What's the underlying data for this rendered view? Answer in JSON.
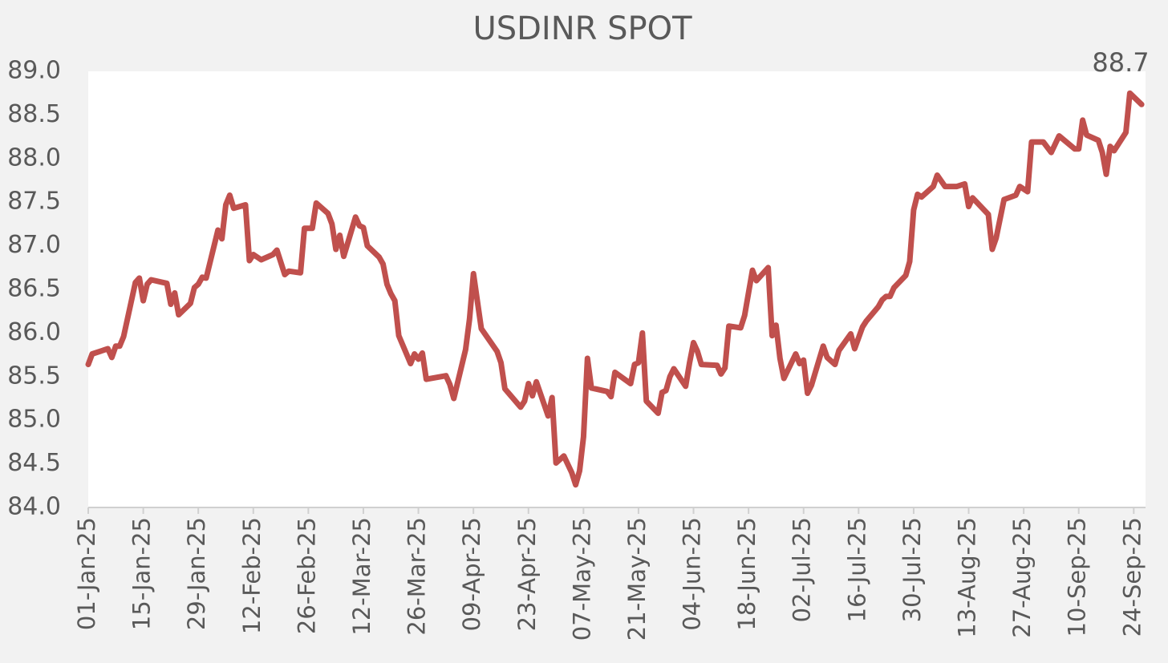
{
  "chart_data": {
    "type": "line",
    "title": "USDINR SPOT",
    "annotations": [
      {
        "text": "88.7"
      }
    ],
    "x": [
      "2025-01-01",
      "2025-01-02",
      "2025-01-06",
      "2025-01-07",
      "2025-01-08",
      "2025-01-09",
      "2025-01-10",
      "2025-01-13",
      "2025-01-14",
      "2025-01-15",
      "2025-01-16",
      "2025-01-17",
      "2025-01-21",
      "2025-01-22",
      "2025-01-23",
      "2025-01-24",
      "2025-01-27",
      "2025-01-28",
      "2025-01-29",
      "2025-01-30",
      "2025-01-31",
      "2025-02-03",
      "2025-02-04",
      "2025-02-05",
      "2025-02-06",
      "2025-02-07",
      "2025-02-10",
      "2025-02-11",
      "2025-02-12",
      "2025-02-14",
      "2025-02-17",
      "2025-02-18",
      "2025-02-20",
      "2025-02-21",
      "2025-02-24",
      "2025-02-25",
      "2025-02-27",
      "2025-02-28",
      "2025-03-03",
      "2025-03-04",
      "2025-03-05",
      "2025-03-06",
      "2025-03-07",
      "2025-03-10",
      "2025-03-11",
      "2025-03-12",
      "2025-03-13",
      "2025-03-16",
      "2025-03-17",
      "2025-03-18",
      "2025-03-19",
      "2025-03-20",
      "2025-03-21",
      "2025-03-24",
      "2025-03-25",
      "2025-03-26",
      "2025-03-27",
      "2025-03-28",
      "2025-04-02",
      "2025-04-03",
      "2025-04-04",
      "2025-04-07",
      "2025-04-08",
      "2025-04-09",
      "2025-04-11",
      "2025-04-15",
      "2025-04-16",
      "2025-04-17",
      "2025-04-21",
      "2025-04-22",
      "2025-04-23",
      "2025-04-24",
      "2025-04-25",
      "2025-04-28",
      "2025-04-29",
      "2025-04-30",
      "2025-05-02",
      "2025-05-04",
      "2025-05-05",
      "2025-05-06",
      "2025-05-07",
      "2025-05-08",
      "2025-05-09",
      "2025-05-13",
      "2025-05-14",
      "2025-05-15",
      "2025-05-19",
      "2025-05-20",
      "2025-05-21",
      "2025-05-22",
      "2025-05-23",
      "2025-05-26",
      "2025-05-27",
      "2025-05-28",
      "2025-05-29",
      "2025-05-30",
      "2025-06-02",
      "2025-06-03",
      "2025-06-04",
      "2025-06-05",
      "2025-06-06",
      "2025-06-10",
      "2025-06-11",
      "2025-06-12",
      "2025-06-13",
      "2025-06-16",
      "2025-06-17",
      "2025-06-19",
      "2025-06-20",
      "2025-06-23",
      "2025-06-24",
      "2025-06-25",
      "2025-06-26",
      "2025-06-27",
      "2025-06-30",
      "2025-07-01",
      "2025-07-02",
      "2025-07-03",
      "2025-07-04",
      "2025-07-07",
      "2025-07-08",
      "2025-07-10",
      "2025-07-11",
      "2025-07-14",
      "2025-07-15",
      "2025-07-17",
      "2025-07-18",
      "2025-07-21",
      "2025-07-22",
      "2025-07-23",
      "2025-07-24",
      "2025-07-25",
      "2025-07-28",
      "2025-07-29",
      "2025-07-30",
      "2025-07-31",
      "2025-08-01",
      "2025-08-04",
      "2025-08-05",
      "2025-08-07",
      "2025-08-10",
      "2025-08-12",
      "2025-08-13",
      "2025-08-14",
      "2025-08-18",
      "2025-08-19",
      "2025-08-20",
      "2025-08-22",
      "2025-08-25",
      "2025-08-26",
      "2025-08-28",
      "2025-08-29",
      "2025-09-01",
      "2025-09-03",
      "2025-09-05",
      "2025-09-09",
      "2025-09-10",
      "2025-09-11",
      "2025-09-12",
      "2025-09-15",
      "2025-09-16",
      "2025-09-17",
      "2025-09-18",
      "2025-09-19",
      "2025-09-22",
      "2025-09-23",
      "2025-09-26"
    ],
    "series": [
      {
        "name": "USDINR",
        "color": "#c0504d",
        "values": [
          85.64,
          85.76,
          85.82,
          85.72,
          85.85,
          85.85,
          85.96,
          86.58,
          86.63,
          86.37,
          86.56,
          86.61,
          86.57,
          86.33,
          86.46,
          86.21,
          86.34,
          86.52,
          86.56,
          86.64,
          86.63,
          87.18,
          87.08,
          87.47,
          87.58,
          87.43,
          87.47,
          86.83,
          86.9,
          86.84,
          86.9,
          86.95,
          86.67,
          86.71,
          86.69,
          87.2,
          87.2,
          87.49,
          87.37,
          87.25,
          86.96,
          87.12,
          86.88,
          87.33,
          87.23,
          87.21,
          87.0,
          86.87,
          86.79,
          86.56,
          86.45,
          86.37,
          85.97,
          85.65,
          85.76,
          85.7,
          85.77,
          85.47,
          85.51,
          85.41,
          85.25,
          85.81,
          86.16,
          86.68,
          86.05,
          85.79,
          85.66,
          85.36,
          85.15,
          85.22,
          85.42,
          85.28,
          85.44,
          85.05,
          85.26,
          84.51,
          84.59,
          84.4,
          84.26,
          84.42,
          84.81,
          85.71,
          85.37,
          85.33,
          85.27,
          85.55,
          85.42,
          85.64,
          85.66,
          86.0,
          85.22,
          85.08,
          85.32,
          85.34,
          85.5,
          85.59,
          85.39,
          85.66,
          85.89,
          85.79,
          85.64,
          85.63,
          85.53,
          85.6,
          86.08,
          86.06,
          86.2,
          86.72,
          86.6,
          86.75,
          85.97,
          86.09,
          85.71,
          85.48,
          85.76,
          85.65,
          85.69,
          85.31,
          85.4,
          85.85,
          85.72,
          85.64,
          85.8,
          85.99,
          85.82,
          86.07,
          86.14,
          86.3,
          86.38,
          86.42,
          86.42,
          86.52,
          86.66,
          86.82,
          87.41,
          87.59,
          87.56,
          87.68,
          87.81,
          87.68,
          87.68,
          87.71,
          87.45,
          87.55,
          87.36,
          86.96,
          87.09,
          87.53,
          87.58,
          87.68,
          87.62,
          88.19,
          88.19,
          88.07,
          88.26,
          88.11,
          88.11,
          88.44,
          88.27,
          88.21,
          88.07,
          87.82,
          88.14,
          88.09,
          88.3,
          88.75,
          88.62
        ]
      }
    ],
    "xlim": [
      "2025-01-01",
      "2025-09-27"
    ],
    "xticks": [
      {
        "value": "2025-01-01",
        "label": "01-Jan-25"
      },
      {
        "value": "2025-01-15",
        "label": "15-Jan-25"
      },
      {
        "value": "2025-01-29",
        "label": "29-Jan-25"
      },
      {
        "value": "2025-02-12",
        "label": "12-Feb-25"
      },
      {
        "value": "2025-02-26",
        "label": "26-Feb-25"
      },
      {
        "value": "2025-03-12",
        "label": "12-Mar-25"
      },
      {
        "value": "2025-03-26",
        "label": "26-Mar-25"
      },
      {
        "value": "2025-04-09",
        "label": "09-Apr-25"
      },
      {
        "value": "2025-04-23",
        "label": "23-Apr-25"
      },
      {
        "value": "2025-05-07",
        "label": "07-May-25"
      },
      {
        "value": "2025-05-21",
        "label": "21-May-25"
      },
      {
        "value": "2025-06-04",
        "label": "04-Jun-25"
      },
      {
        "value": "2025-06-18",
        "label": "18-Jun-25"
      },
      {
        "value": "2025-07-02",
        "label": "02-Jul-25"
      },
      {
        "value": "2025-07-16",
        "label": "16-Jul-25"
      },
      {
        "value": "2025-07-30",
        "label": "30-Jul-25"
      },
      {
        "value": "2025-08-13",
        "label": "13-Aug-25"
      },
      {
        "value": "2025-08-27",
        "label": "27-Aug-25"
      },
      {
        "value": "2025-09-10",
        "label": "10-Sep-25"
      },
      {
        "value": "2025-09-24",
        "label": "24-Sep-25"
      }
    ],
    "ylim": [
      84,
      89
    ],
    "yticks": [
      {
        "value": 84,
        "label": "84.0"
      },
      {
        "value": 84.5,
        "label": "84.5"
      },
      {
        "value": 85,
        "label": "85.0"
      },
      {
        "value": 85.5,
        "label": "85.5"
      },
      {
        "value": 86,
        "label": "86.0"
      },
      {
        "value": 86.5,
        "label": "86.5"
      },
      {
        "value": 87,
        "label": "87.0"
      },
      {
        "value": 87.5,
        "label": "87.5"
      },
      {
        "value": 88,
        "label": "88.0"
      },
      {
        "value": 88.5,
        "label": "88.5"
      },
      {
        "value": 89,
        "label": "89.0"
      }
    ],
    "grid": false
  }
}
